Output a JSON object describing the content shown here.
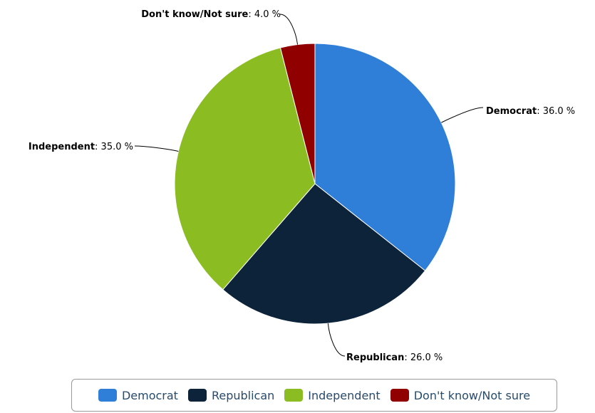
{
  "chart_data": {
    "type": "pie",
    "title": "",
    "value_suffix": " %",
    "slices": [
      {
        "name": "Democrat",
        "value": 36.0,
        "color": "#2f7ed8"
      },
      {
        "name": "Republican",
        "value": 26.0,
        "color": "#0d233a"
      },
      {
        "name": "Independent",
        "value": 35.0,
        "color": "#8bbc21"
      },
      {
        "name": "Don't know/Not sure",
        "value": 4.0,
        "color": "#910000"
      }
    ],
    "legend": {
      "placement": "bottom-center"
    }
  }
}
